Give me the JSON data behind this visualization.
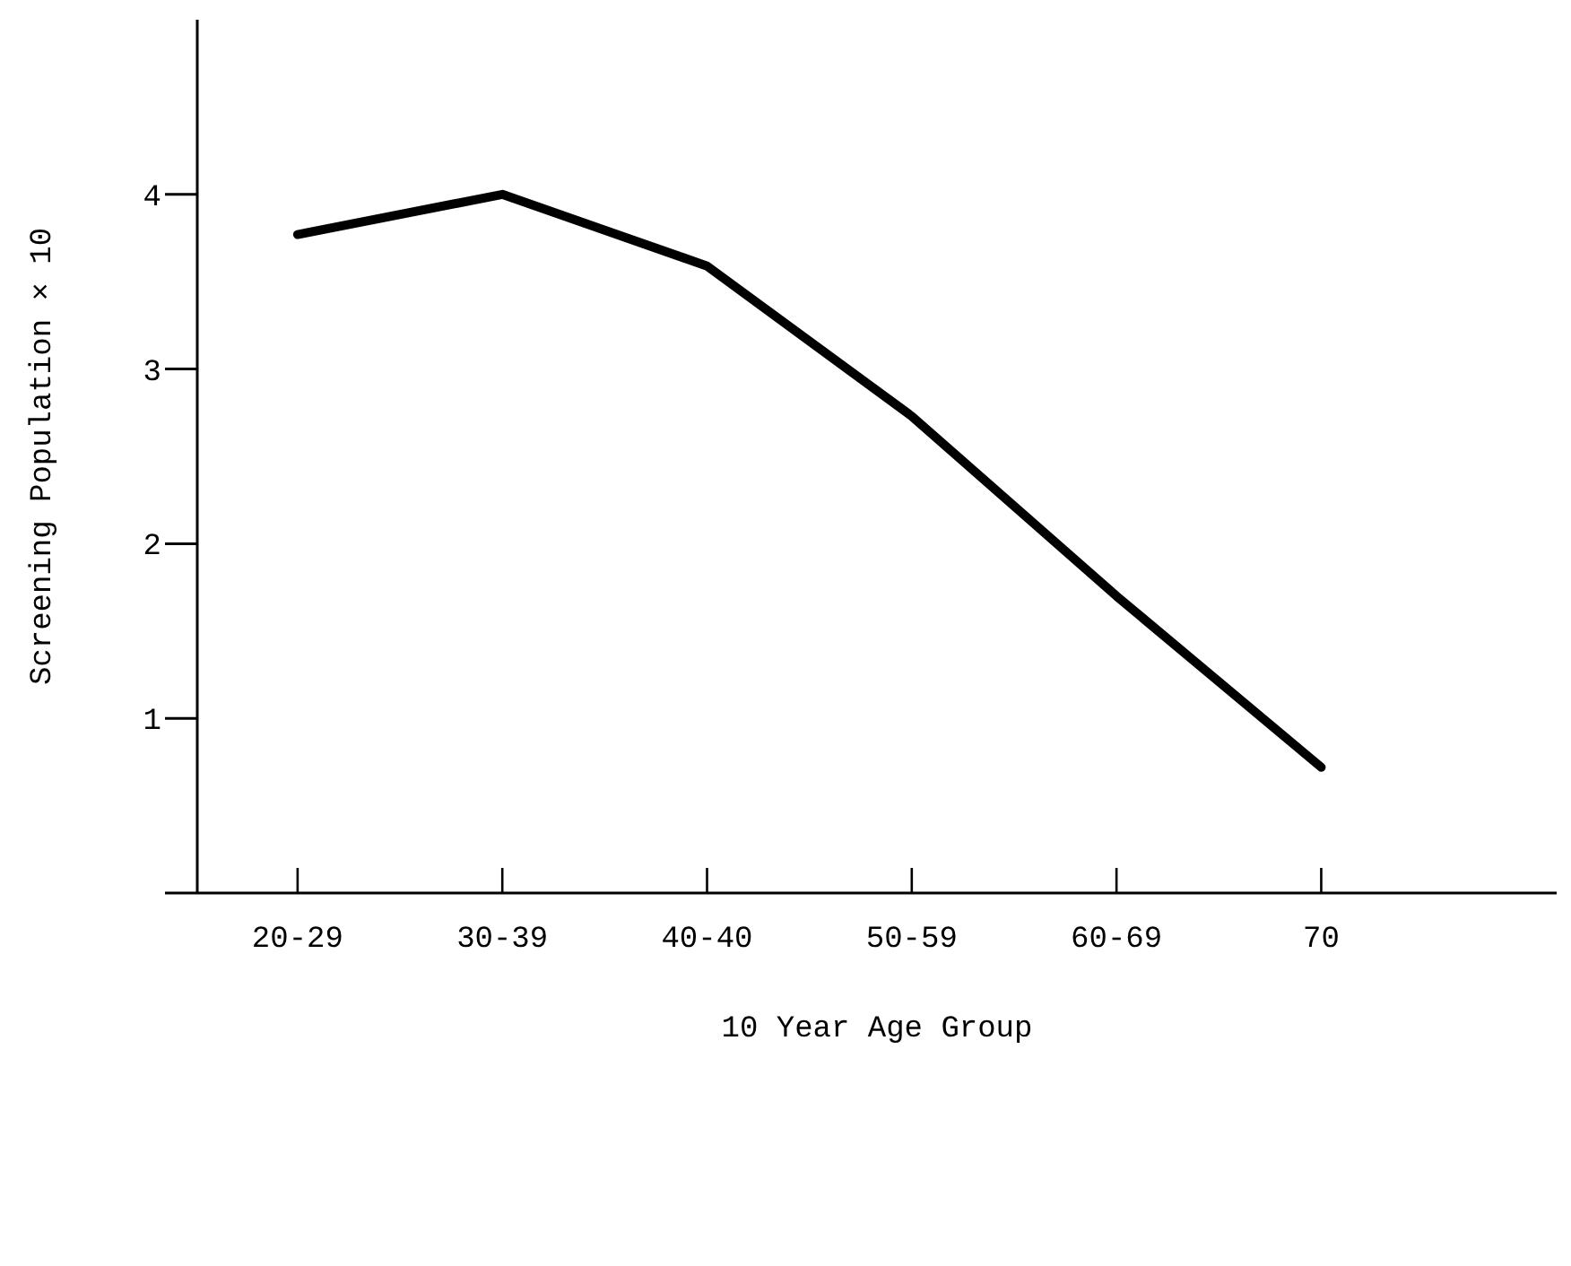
{
  "chart_data": {
    "type": "line",
    "xlabel": "10 Year Age Group",
    "ylabel": "Screening Population × 10",
    "categories": [
      "20-29",
      "30-39",
      "40-40",
      "50-59",
      "60-69",
      "70"
    ],
    "series": [
      {
        "color": "#000000",
        "values": [
          3.77,
          4.0,
          3.59,
          2.73,
          1.7,
          0.72
        ]
      }
    ],
    "ylim": [
      0,
      5
    ],
    "yticks": [
      {
        "value": 0,
        "label": null
      },
      1,
      2,
      3,
      4
    ],
    "grid": false,
    "legend": false,
    "marker": "none",
    "line_style": "solid"
  }
}
